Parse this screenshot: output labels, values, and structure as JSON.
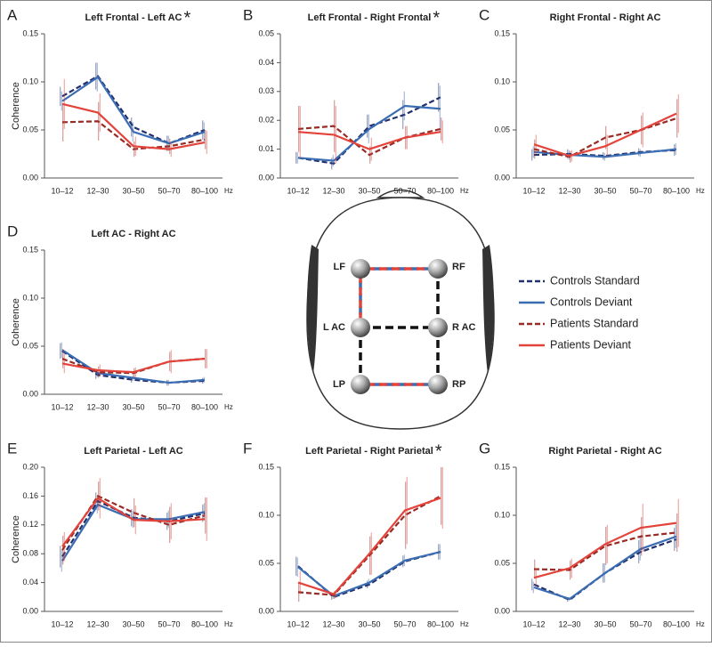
{
  "chart_data": [
    {
      "type": "line",
      "panel_label": "A",
      "title": "Left Frontal - Left AC",
      "marker": "*",
      "ylabel": "Coherence",
      "categories": [
        "10–12",
        "12–30",
        "30–50",
        "50–70",
        "80–100"
      ],
      "x_unit": "Hz",
      "ylim": [
        0,
        0.15
      ],
      "yticks": [
        {
          "value": 0,
          "label": "0.00"
        },
        {
          "value": 0.05,
          "label": "0.05"
        },
        {
          "value": 0.1,
          "label": "0.10"
        },
        {
          "value": 0.15,
          "label": "0.15"
        }
      ],
      "series": [
        {
          "values": [
            0.085,
            0.106,
            0.053,
            0.036,
            0.05
          ],
          "errors": [
            0.01,
            0.014,
            0.01,
            0.008,
            0.01
          ]
        },
        {
          "values": [
            0.08,
            0.105,
            0.048,
            0.036,
            0.048
          ],
          "errors": [
            0.01,
            0.015,
            0.01,
            0.008,
            0.01
          ]
        },
        {
          "values": [
            0.058,
            0.059,
            0.03,
            0.033,
            0.04
          ],
          "errors": [
            0.02,
            0.02,
            0.008,
            0.008,
            0.01
          ]
        },
        {
          "values": [
            0.077,
            0.068,
            0.033,
            0.03,
            0.037
          ],
          "errors": [
            0.026,
            0.02,
            0.01,
            0.008,
            0.012
          ]
        }
      ]
    },
    {
      "type": "line",
      "panel_label": "B",
      "title": "Left Frontal - Right Frontal",
      "marker": "*",
      "categories": [
        "10–12",
        "12–30",
        "30–50",
        "50–70",
        "80–100"
      ],
      "x_unit": "Hz",
      "ylim": [
        0,
        0.05
      ],
      "yticks": [
        {
          "value": 0,
          "label": "0.00"
        },
        {
          "value": 0.01,
          "label": "0.01"
        },
        {
          "value": 0.02,
          "label": "0.02"
        },
        {
          "value": 0.03,
          "label": "0.03"
        },
        {
          "value": 0.04,
          "label": "0.04"
        },
        {
          "value": 0.05,
          "label": "0.05"
        }
      ],
      "series": [
        {
          "values": [
            0.007,
            0.005,
            0.018,
            0.022,
            0.028
          ],
          "errors": [
            0.002,
            0.002,
            0.004,
            0.005,
            0.005
          ]
        },
        {
          "values": [
            0.007,
            0.006,
            0.017,
            0.025,
            0.024
          ],
          "errors": [
            0.002,
            0.002,
            0.005,
            0.005,
            0.008
          ]
        },
        {
          "values": [
            0.017,
            0.018,
            0.008,
            0.014,
            0.017
          ],
          "errors": [
            0.008,
            0.009,
            0.003,
            0.004,
            0.004
          ]
        },
        {
          "values": [
            0.016,
            0.015,
            0.01,
            0.014,
            0.016
          ],
          "errors": [
            0.009,
            0.01,
            0.004,
            0.004,
            0.004
          ]
        }
      ]
    },
    {
      "type": "line",
      "panel_label": "C",
      "title": "Right Frontal - Right AC",
      "categories": [
        "10–12",
        "12–30",
        "30–50",
        "50–70",
        "80–100"
      ],
      "x_unit": "Hz",
      "ylim": [
        0,
        0.15
      ],
      "yticks": [
        {
          "value": 0,
          "label": "0.00"
        },
        {
          "value": 0.05,
          "label": "0.05"
        },
        {
          "value": 0.1,
          "label": "0.10"
        },
        {
          "value": 0.15,
          "label": "0.15"
        }
      ],
      "series": [
        {
          "values": [
            0.024,
            0.025,
            0.023,
            0.027,
            0.029
          ],
          "errors": [
            0.006,
            0.005,
            0.004,
            0.004,
            0.006
          ]
        },
        {
          "values": [
            0.027,
            0.024,
            0.022,
            0.026,
            0.03
          ],
          "errors": [
            0.006,
            0.005,
            0.004,
            0.004,
            0.006
          ]
        },
        {
          "values": [
            0.03,
            0.022,
            0.042,
            0.05,
            0.062
          ],
          "errors": [
            0.01,
            0.006,
            0.012,
            0.015,
            0.02
          ]
        },
        {
          "values": [
            0.035,
            0.023,
            0.033,
            0.05,
            0.067
          ],
          "errors": [
            0.01,
            0.006,
            0.012,
            0.018,
            0.02
          ]
        }
      ]
    },
    {
      "type": "line",
      "panel_label": "D",
      "title": "Left AC - Right AC",
      "ylabel": "Coherence",
      "categories": [
        "10–12",
        "12–30",
        "30–50",
        "50–70",
        "80–100"
      ],
      "x_unit": "Hz",
      "ylim": [
        0,
        0.15
      ],
      "yticks": [
        {
          "value": 0,
          "label": "0.00"
        },
        {
          "value": 0.05,
          "label": "0.05"
        },
        {
          "value": 0.1,
          "label": "0.10"
        },
        {
          "value": 0.15,
          "label": "0.15"
        }
      ],
      "series": [
        {
          "values": [
            0.045,
            0.02,
            0.015,
            0.012,
            0.014
          ],
          "errors": [
            0.008,
            0.004,
            0.003,
            0.003,
            0.003
          ]
        },
        {
          "values": [
            0.046,
            0.022,
            0.017,
            0.012,
            0.015
          ],
          "errors": [
            0.008,
            0.004,
            0.003,
            0.003,
            0.003
          ]
        },
        {
          "values": [
            0.037,
            0.023,
            0.022,
            0.034,
            0.037
          ],
          "errors": [
            0.01,
            0.006,
            0.005,
            0.01,
            0.01
          ]
        },
        {
          "values": [
            0.032,
            0.025,
            0.023,
            0.034,
            0.037
          ],
          "errors": [
            0.01,
            0.006,
            0.005,
            0.012,
            0.01
          ]
        }
      ]
    },
    {
      "type": "line",
      "panel_label": "E",
      "title": "Left Parietal - Left AC",
      "ylabel": "Coherence",
      "categories": [
        "10–12",
        "12–30",
        "30–50",
        "50–70",
        "80–100"
      ],
      "x_unit": "Hz",
      "ylim": [
        0,
        0.2
      ],
      "yticks": [
        {
          "value": 0,
          "label": "0.00"
        },
        {
          "value": 0.04,
          "label": "0.04"
        },
        {
          "value": 0.08,
          "label": "0.08"
        },
        {
          "value": 0.12,
          "label": "0.12"
        },
        {
          "value": 0.16,
          "label": "0.16"
        },
        {
          "value": 0.2,
          "label": "0.20"
        }
      ],
      "series": [
        {
          "values": [
            0.076,
            0.153,
            0.13,
            0.125,
            0.136
          ],
          "errors": [
            0.015,
            0.012,
            0.012,
            0.012,
            0.012
          ]
        },
        {
          "values": [
            0.07,
            0.148,
            0.128,
            0.128,
            0.138
          ],
          "errors": [
            0.015,
            0.012,
            0.012,
            0.012,
            0.012
          ]
        },
        {
          "values": [
            0.085,
            0.16,
            0.137,
            0.12,
            0.133
          ],
          "errors": [
            0.02,
            0.02,
            0.02,
            0.025,
            0.025
          ]
        },
        {
          "values": [
            0.09,
            0.157,
            0.127,
            0.125,
            0.128
          ],
          "errors": [
            0.02,
            0.028,
            0.02,
            0.025,
            0.03
          ]
        }
      ]
    },
    {
      "type": "line",
      "panel_label": "F",
      "title": "Left Parietal - Right Parietal",
      "marker": "*",
      "categories": [
        "10–12",
        "12–30",
        "30–50",
        "50–70",
        "80–100"
      ],
      "x_unit": "Hz",
      "ylim": [
        0,
        0.15
      ],
      "yticks": [
        {
          "value": 0,
          "label": "0.00"
        },
        {
          "value": 0.05,
          "label": "0.05"
        },
        {
          "value": 0.1,
          "label": "0.10"
        },
        {
          "value": 0.15,
          "label": "0.15"
        }
      ],
      "series": [
        {
          "values": [
            0.047,
            0.015,
            0.028,
            0.052,
            0.062
          ],
          "errors": [
            0.01,
            0.003,
            0.004,
            0.006,
            0.008
          ]
        },
        {
          "values": [
            0.046,
            0.016,
            0.03,
            0.053,
            0.062
          ],
          "errors": [
            0.01,
            0.003,
            0.004,
            0.006,
            0.008
          ]
        },
        {
          "values": [
            0.02,
            0.017,
            0.058,
            0.1,
            0.12
          ],
          "errors": [
            0.01,
            0.004,
            0.02,
            0.035,
            0.03
          ]
        },
        {
          "values": [
            0.03,
            0.018,
            0.06,
            0.105,
            0.118
          ],
          "errors": [
            0.012,
            0.004,
            0.022,
            0.035,
            0.032
          ]
        }
      ]
    },
    {
      "type": "line",
      "panel_label": "G",
      "title": "Right Parietal - Right AC",
      "categories": [
        "10–12",
        "12–30",
        "30–50",
        "50–70",
        "80–100"
      ],
      "x_unit": "Hz",
      "ylim": [
        0,
        0.15
      ],
      "yticks": [
        {
          "value": 0,
          "label": "0.00"
        },
        {
          "value": 0.05,
          "label": "0.05"
        },
        {
          "value": 0.1,
          "label": "0.10"
        },
        {
          "value": 0.15,
          "label": "0.15"
        }
      ],
      "series": [
        {
          "values": [
            0.028,
            0.012,
            0.04,
            0.062,
            0.075
          ],
          "errors": [
            0.006,
            0.002,
            0.01,
            0.012,
            0.012
          ]
        },
        {
          "values": [
            0.025,
            0.013,
            0.04,
            0.065,
            0.078
          ],
          "errors": [
            0.006,
            0.002,
            0.01,
            0.012,
            0.012
          ]
        },
        {
          "values": [
            0.044,
            0.043,
            0.068,
            0.078,
            0.082
          ],
          "errors": [
            0.01,
            0.01,
            0.02,
            0.02,
            0.02
          ]
        },
        {
          "values": [
            0.035,
            0.045,
            0.07,
            0.087,
            0.092
          ],
          "errors": [
            0.01,
            0.01,
            0.02,
            0.025,
            0.025
          ]
        }
      ]
    }
  ],
  "legend": [
    {
      "name": "Controls Standard",
      "color": "#22306e",
      "dashed": true
    },
    {
      "name": "Controls Deviant",
      "color": "#3b6db3",
      "dashed": false
    },
    {
      "name": "Patients Standard",
      "color": "#9a2a24",
      "dashed": true
    },
    {
      "name": "Patients Deviant",
      "color": "#e2433a",
      "dashed": false
    }
  ],
  "diagram": {
    "nodes": [
      {
        "label": "LF"
      },
      {
        "label": "RF"
      },
      {
        "label": "L AC"
      },
      {
        "label": "R AC"
      },
      {
        "label": "LP"
      },
      {
        "label": "RP"
      }
    ]
  }
}
